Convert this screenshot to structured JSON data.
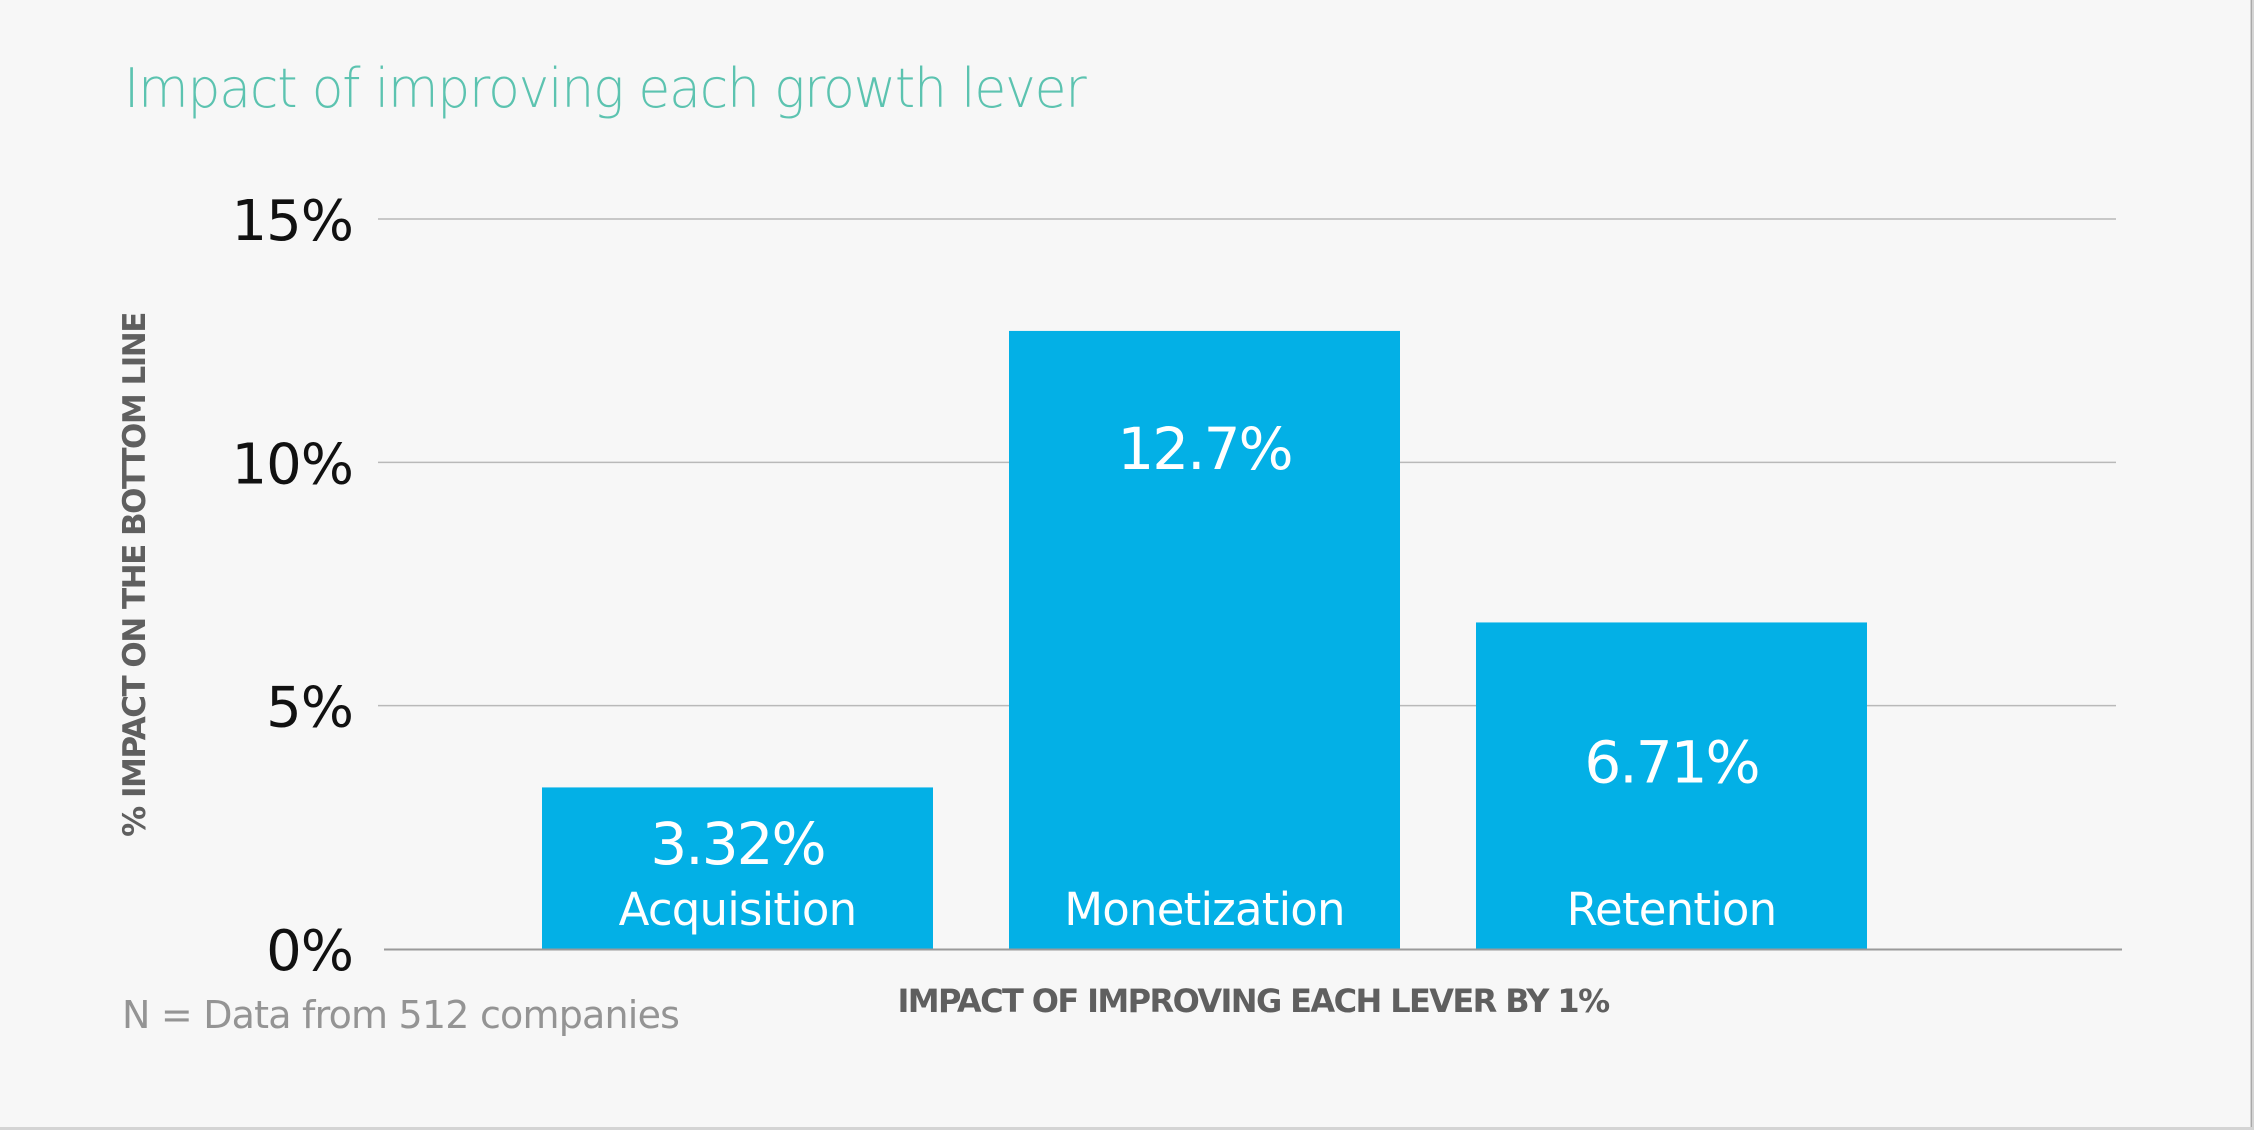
{
  "title": "Impact of improving each growth lever",
  "footnote": "N = Data from 512 companies",
  "colors": {
    "title": "#5cc3b0",
    "bar": "#03b0e6",
    "gridline": "#b9b9b9",
    "axis_text": "#5f5f5f",
    "tick_text": "#111111",
    "background": "#f7f7f7"
  },
  "chart_data": {
    "type": "bar",
    "title": "Impact of improving each growth lever",
    "categories": [
      "Acquisition",
      "Monetization",
      "Retention"
    ],
    "values": [
      3.32,
      12.7,
      6.71
    ],
    "value_labels": [
      "3.32%",
      "12.7%",
      "6.71%"
    ],
    "xlabel": "IMPACT OF IMPROVING EACH LEVER BY 1%",
    "ylabel": "% IMPACT ON THE BOTTOM LINE",
    "ylim": [
      0,
      15
    ],
    "yticks": [
      0,
      5,
      10,
      15
    ],
    "ytick_labels": [
      "0%",
      "5%",
      "10%",
      "15%"
    ],
    "grid": true,
    "legend": "none",
    "data_labels": "inside-bar",
    "units": "%"
  }
}
